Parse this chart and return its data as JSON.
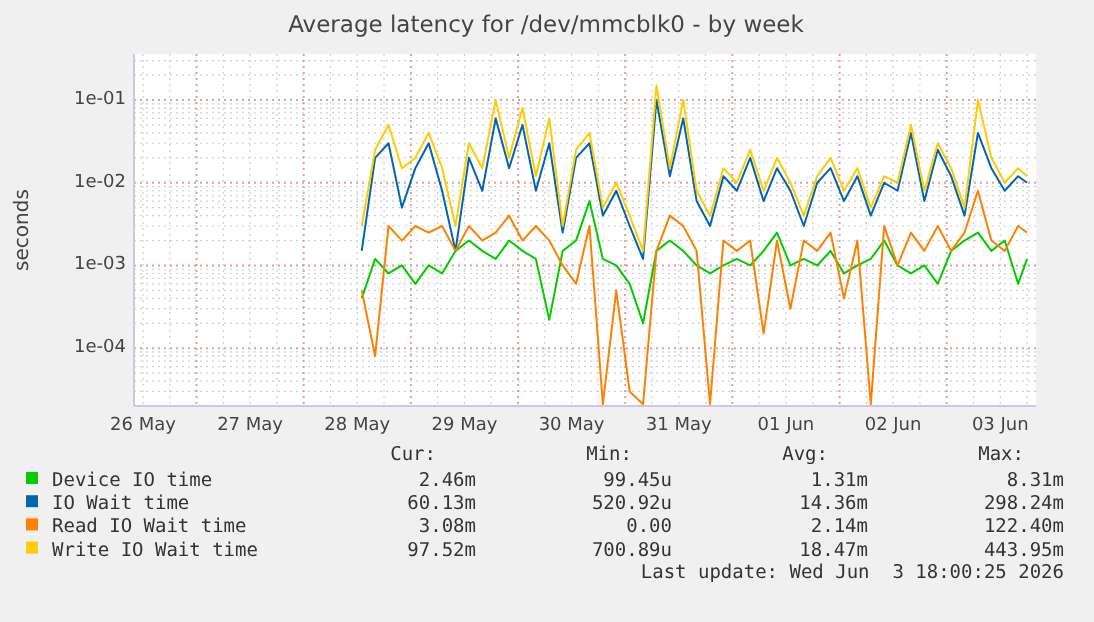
{
  "chart_data": {
    "type": "line",
    "title": "Average latency for /dev/mmcblk0 - by week",
    "ylabel": "seconds",
    "log": true,
    "grid": true,
    "legend": "bottom",
    "line_style": "solid",
    "marker": "none",
    "xlim": [
      "2026-05-26T10:00",
      "2026-06-03T20:00"
    ],
    "ylim": [
      2e-05,
      0.36
    ],
    "xticks": [
      {
        "value": "2026-05-26T12:00",
        "label": "26 May"
      },
      {
        "value": "2026-05-27T12:00",
        "label": "27 May"
      },
      {
        "value": "2026-05-28T12:00",
        "label": "28 May"
      },
      {
        "value": "2026-05-29T12:00",
        "label": "29 May"
      },
      {
        "value": "2026-05-30T12:00",
        "label": "30 May"
      },
      {
        "value": "2026-05-31T12:00",
        "label": "31 May"
      },
      {
        "value": "2026-06-01T12:00",
        "label": "01 Jun"
      },
      {
        "value": "2026-06-02T12:00",
        "label": "02 Jun"
      },
      {
        "value": "2026-06-03T12:00",
        "label": "03 Jun"
      }
    ],
    "yticks": [
      {
        "value": 0.0001,
        "label": "1e-04"
      },
      {
        "value": 0.001,
        "label": "1e-03"
      },
      {
        "value": 0.01,
        "label": "1e-02"
      },
      {
        "value": 0.1,
        "label": "1e-01"
      }
    ],
    "x": [
      "2026-05-28T13:00",
      "2026-05-28T16:00",
      "2026-05-28T19:00",
      "2026-05-28T22:00",
      "2026-05-29T01:00",
      "2026-05-29T04:00",
      "2026-05-29T07:00",
      "2026-05-29T10:00",
      "2026-05-29T13:00",
      "2026-05-29T16:00",
      "2026-05-29T19:00",
      "2026-05-29T22:00",
      "2026-05-30T01:00",
      "2026-05-30T04:00",
      "2026-05-30T07:00",
      "2026-05-30T10:00",
      "2026-05-30T13:00",
      "2026-05-30T16:00",
      "2026-05-30T19:00",
      "2026-05-30T22:00",
      "2026-05-31T01:00",
      "2026-05-31T04:00",
      "2026-05-31T07:00",
      "2026-05-31T10:00",
      "2026-05-31T13:00",
      "2026-05-31T16:00",
      "2026-05-31T19:00",
      "2026-05-31T22:00",
      "2026-06-01T01:00",
      "2026-06-01T04:00",
      "2026-06-01T07:00",
      "2026-06-01T10:00",
      "2026-06-01T13:00",
      "2026-06-01T16:00",
      "2026-06-01T19:00",
      "2026-06-01T22:00",
      "2026-06-02T01:00",
      "2026-06-02T04:00",
      "2026-06-02T07:00",
      "2026-06-02T10:00",
      "2026-06-02T13:00",
      "2026-06-02T16:00",
      "2026-06-02T19:00",
      "2026-06-02T22:00",
      "2026-06-03T01:00",
      "2026-06-03T04:00",
      "2026-06-03T07:00",
      "2026-06-03T10:00",
      "2026-06-03T13:00",
      "2026-06-03T16:00",
      "2026-06-03T18:00"
    ],
    "series": [
      {
        "name": "Device IO time",
        "color": "#00cc00",
        "values": [
          0.0004,
          0.0012,
          0.0008,
          0.001,
          0.0006,
          0.001,
          0.0008,
          0.0015,
          0.002,
          0.0015,
          0.0012,
          0.002,
          0.0015,
          0.0012,
          0.00022,
          0.0015,
          0.002,
          0.006,
          0.0012,
          0.001,
          0.0006,
          0.0002,
          0.0015,
          0.002,
          0.0015,
          0.001,
          0.0008,
          0.001,
          0.0012,
          0.001,
          0.0015,
          0.0025,
          0.001,
          0.0012,
          0.001,
          0.0015,
          0.0008,
          0.001,
          0.0012,
          0.002,
          0.001,
          0.0008,
          0.001,
          0.0006,
          0.0015,
          0.002,
          0.0025,
          0.0015,
          0.002,
          0.0006,
          0.0012
        ]
      },
      {
        "name": "IO Wait time",
        "color": "#0066b3",
        "values": [
          0.0015,
          0.02,
          0.03,
          0.005,
          0.015,
          0.03,
          0.008,
          0.0015,
          0.02,
          0.008,
          0.06,
          0.015,
          0.05,
          0.008,
          0.03,
          0.0025,
          0.02,
          0.03,
          0.004,
          0.008,
          0.003,
          0.0012,
          0.1,
          0.012,
          0.06,
          0.006,
          0.003,
          0.012,
          0.008,
          0.02,
          0.006,
          0.015,
          0.008,
          0.003,
          0.01,
          0.015,
          0.006,
          0.012,
          0.004,
          0.01,
          0.008,
          0.04,
          0.006,
          0.025,
          0.012,
          0.004,
          0.04,
          0.015,
          0.008,
          0.012,
          0.01
        ]
      },
      {
        "name": "Read IO Wait time",
        "color": "#ff8000",
        "values": [
          0.0005,
          8e-05,
          0.003,
          0.002,
          0.003,
          0.0025,
          0.003,
          0.0015,
          0.003,
          0.002,
          0.0025,
          0.004,
          0.002,
          0.003,
          0.002,
          0.001,
          0.0006,
          0.003,
          2.1e-05,
          0.0005,
          3e-05,
          2.1e-05,
          0.0015,
          0.004,
          0.003,
          0.0015,
          2.1e-05,
          0.002,
          0.0015,
          0.002,
          0.00015,
          0.002,
          0.0003,
          0.002,
          0.0015,
          0.0025,
          0.0004,
          0.002,
          2.1e-05,
          0.003,
          0.001,
          0.0025,
          0.0015,
          0.003,
          0.0015,
          0.0025,
          0.008,
          0.002,
          0.0015,
          0.003,
          0.0025
        ]
      },
      {
        "name": "Write IO Wait time",
        "color": "#ffcc00",
        "values": [
          0.003,
          0.025,
          0.05,
          0.015,
          0.02,
          0.04,
          0.015,
          0.003,
          0.03,
          0.015,
          0.1,
          0.02,
          0.08,
          0.012,
          0.06,
          0.003,
          0.025,
          0.04,
          0.005,
          0.01,
          0.004,
          0.0015,
          0.15,
          0.015,
          0.1,
          0.008,
          0.004,
          0.015,
          0.01,
          0.025,
          0.008,
          0.02,
          0.01,
          0.004,
          0.012,
          0.02,
          0.008,
          0.015,
          0.005,
          0.012,
          0.01,
          0.05,
          0.008,
          0.03,
          0.015,
          0.005,
          0.1,
          0.02,
          0.01,
          0.015,
          0.012
        ]
      }
    ],
    "annotations": [
      "Cur:",
      "Min:",
      "Avg:",
      "Max:",
      "2.46m",
      "99.45u",
      "1.31m",
      "8.31m",
      "60.13m",
      "520.92u",
      "14.36m",
      "298.24m",
      "3.08m",
      "0.00",
      "2.14m",
      "122.40m",
      "97.52m",
      "700.89u",
      "18.47m",
      "443.95m",
      "Last update: Wed Jun  3 18:00:25 2026"
    ]
  }
}
